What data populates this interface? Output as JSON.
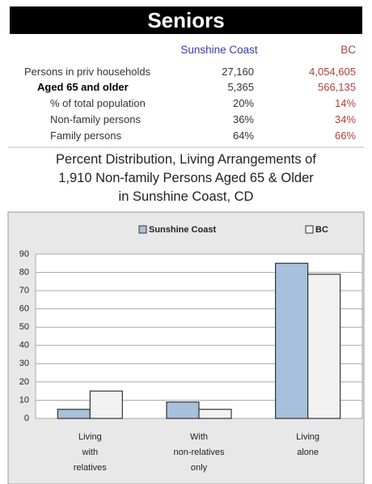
{
  "header": {
    "title": "Seniors"
  },
  "table": {
    "columns": [
      "Sunshine Coast",
      "BC"
    ],
    "rows": [
      [
        "Persons in priv households",
        "27,160",
        "4,054,605"
      ],
      [
        "Aged 65 and older",
        "5,365",
        "566,135"
      ],
      [
        "% of total population",
        "20%",
        "14%"
      ],
      [
        "Non-family persons",
        "36%",
        "34%"
      ],
      [
        "Family persons",
        "64%",
        "66%"
      ]
    ]
  },
  "chart_data": {
    "type": "bar",
    "title": [
      "Percent Distribution, Living Arrangements of",
      "1,910 Non-family Persons Aged 65 & Older",
      "in Sunshine Coast, CD"
    ],
    "categories": [
      "Living with relatives",
      "With non-relatives only",
      "Living alone"
    ],
    "series": [
      {
        "name": "Sunshine Coast",
        "color": "#a7c0dc",
        "values": [
          5,
          9,
          85
        ]
      },
      {
        "name": "BC",
        "color": "#f2f2f2",
        "values": [
          15,
          5,
          79
        ]
      }
    ],
    "ylim": [
      0,
      90
    ],
    "yticks": [
      0,
      10,
      20,
      30,
      40,
      50,
      60,
      70,
      80,
      90
    ],
    "grid": true,
    "legend": "top"
  }
}
